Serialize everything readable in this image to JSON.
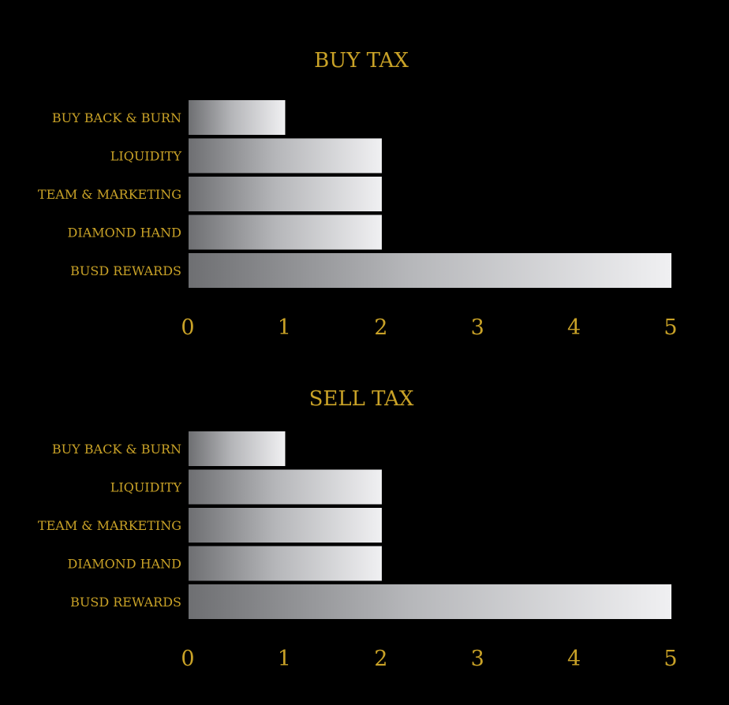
{
  "theme": {
    "background": "#000000",
    "text_color": "#C9A227",
    "bar_gradient_start": "#6E6F72",
    "bar_gradient_end": "#F0F0F2",
    "bar_edge": "#FFFFFF"
  },
  "chart_data": [
    {
      "type": "bar",
      "orientation": "horizontal",
      "title": "BUY TAX",
      "categories": [
        "BUY BACK & BURN",
        "LIQUIDITY",
        "TEAM & MARKETING",
        "DIAMOND HAND",
        "BUSD REWARDS"
      ],
      "values": [
        1,
        2,
        2,
        2,
        5
      ],
      "xlim": [
        0,
        5
      ],
      "xticks": [
        "0",
        "1",
        "2",
        "3",
        "4",
        "5"
      ],
      "xlabel": "",
      "ylabel": "",
      "grid": false,
      "legend": "none"
    },
    {
      "type": "bar",
      "orientation": "horizontal",
      "title": "SELL TAX",
      "categories": [
        "BUY BACK & BURN",
        "LIQUIDITY",
        "TEAM & MARKETING",
        "DIAMOND HAND",
        "BUSD REWARDS"
      ],
      "values": [
        1,
        2,
        2,
        2,
        5
      ],
      "xlim": [
        0,
        5
      ],
      "xticks": [
        "0",
        "1",
        "2",
        "3",
        "4",
        "5"
      ],
      "xlabel": "",
      "ylabel": "",
      "grid": false,
      "legend": "none"
    }
  ]
}
